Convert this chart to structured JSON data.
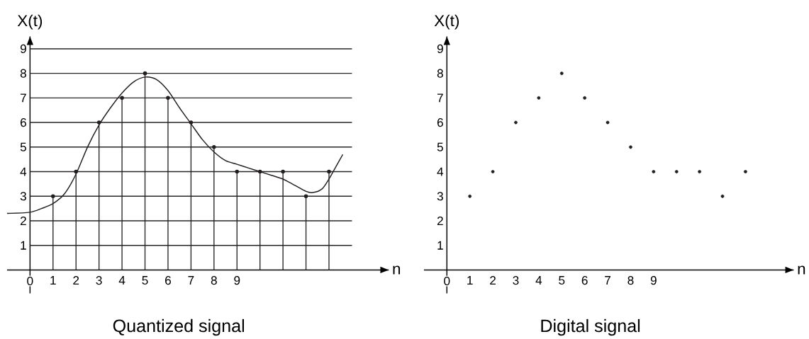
{
  "chart_data": [
    {
      "type": "line",
      "title": "Quantized signal",
      "xlabel": "n",
      "ylabel": "X(t)",
      "xlim": [
        -1,
        15.6
      ],
      "ylim": [
        -0.95,
        9.5
      ],
      "xticks": [
        {
          "value": 0,
          "label": "0"
        },
        1,
        2,
        3,
        4,
        5,
        6,
        7,
        8,
        9
      ],
      "yticks": [
        1,
        2,
        3,
        4,
        5,
        6,
        7,
        8,
        9
      ],
      "grid": "y",
      "series": [
        {
          "type": "line",
          "color": "#231f20",
          "marker": "none",
          "x": [
            -1,
            0,
            0.5,
            1,
            1.5,
            2,
            2.5,
            3,
            3.5,
            4,
            4.5,
            5,
            5.5,
            6,
            6.5,
            7,
            7.5,
            8,
            8.5,
            9,
            9.5,
            10,
            10.5,
            11,
            11.5,
            12,
            12.3,
            12.7,
            13,
            13.3,
            13.6
          ],
          "values": [
            2.3,
            2.35,
            2.5,
            2.7,
            3.1,
            3.9,
            5.0,
            5.9,
            6.6,
            7.2,
            7.65,
            7.85,
            7.75,
            7.3,
            6.6,
            5.95,
            5.3,
            4.8,
            4.45,
            4.3,
            4.15,
            4.0,
            3.85,
            3.7,
            3.45,
            3.2,
            3.15,
            3.3,
            3.7,
            4.2,
            4.7
          ]
        },
        {
          "type": "lollipop",
          "color": "#231f20",
          "marker": "circle",
          "x": [
            1,
            2,
            3,
            4,
            5,
            6,
            7,
            8,
            9,
            10,
            11,
            12,
            13
          ],
          "values": [
            3,
            4,
            6,
            7,
            8,
            7,
            6,
            5,
            4,
            4,
            4,
            3,
            4
          ]
        }
      ]
    },
    {
      "type": "scatter",
      "title": "Digital signal",
      "xlabel": "n",
      "ylabel": "X(t)",
      "xlim": [
        -1,
        15.1
      ],
      "ylim": [
        -0.95,
        9.5
      ],
      "xticks": [
        {
          "value": 0,
          "label": "0"
        },
        1,
        2,
        3,
        4,
        5,
        6,
        7,
        8,
        9
      ],
      "yticks": [
        1,
        2,
        3,
        4,
        5,
        6,
        7,
        8,
        9
      ],
      "marker": "circle",
      "color": "#231f20",
      "x": [
        1,
        2,
        3,
        4,
        5,
        6,
        7,
        8,
        9,
        10,
        11,
        12,
        13
      ],
      "values": [
        3,
        4,
        6,
        7,
        8,
        7,
        6,
        5,
        4,
        4,
        4,
        3,
        4
      ]
    }
  ]
}
